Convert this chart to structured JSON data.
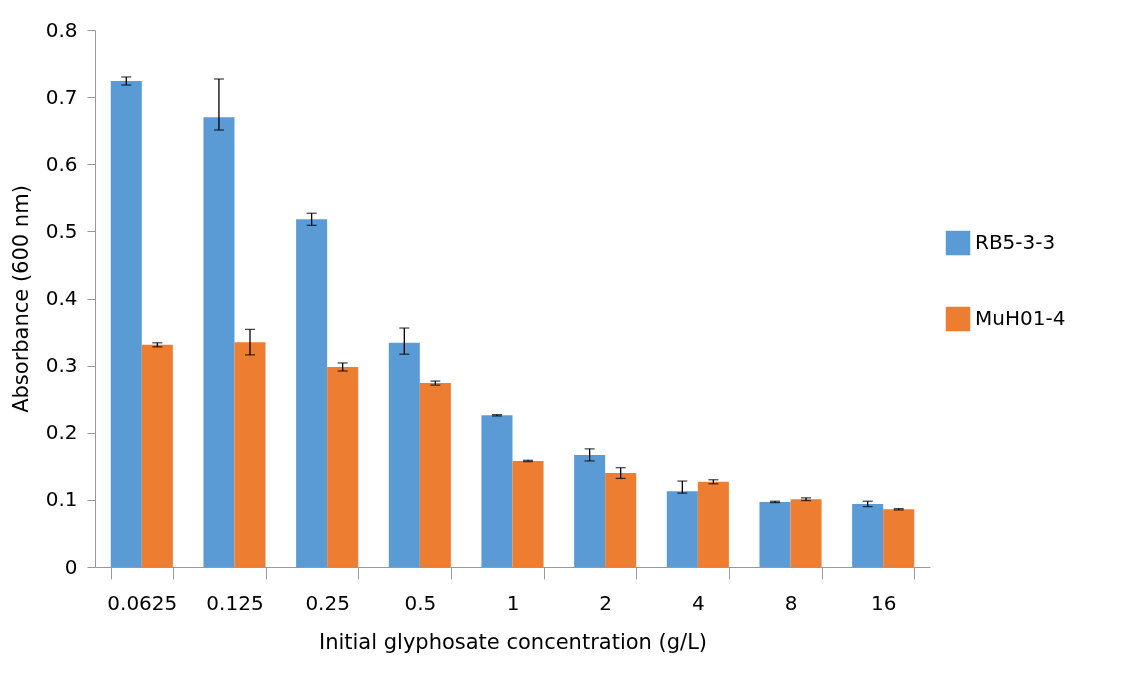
{
  "chart_data": {
    "type": "bar",
    "xlabel": "Initial glyphosate concentration (g/L)",
    "ylabel": "Absorbance (600 nm)",
    "categories": [
      "0.0625",
      "0.125",
      "0.25",
      "0.5",
      "1",
      "2",
      "4",
      "8",
      "16"
    ],
    "series": [
      {
        "name": "RB5-3-3",
        "color": "#5b9bd5",
        "values": [
          0.724,
          0.67,
          0.518,
          0.334,
          0.226,
          0.167,
          0.113,
          0.097,
          0.094
        ],
        "errors": [
          0.006,
          [
            0.651,
            0.727
          ],
          0.009,
          [
            0.317,
            0.356
          ],
          0.001,
          0.009,
          [
            0.11,
            0.128
          ],
          0.001,
          0.004
        ]
      },
      {
        "name": "MuH01-4",
        "color": "#ed7d31",
        "values": [
          0.331,
          0.335,
          0.298,
          0.274,
          0.158,
          0.14,
          0.127,
          0.101,
          0.086
        ],
        "errors": [
          0.003,
          0.019,
          0.006,
          0.003,
          0.001,
          0.008,
          0.003,
          0.002,
          0.001
        ]
      }
    ],
    "ylim": [
      0,
      0.8
    ],
    "yticks": [
      0,
      0.1,
      0.2,
      0.3,
      0.4,
      0.5,
      0.6,
      0.7,
      0.8
    ],
    "grid": false,
    "legend": "right"
  }
}
